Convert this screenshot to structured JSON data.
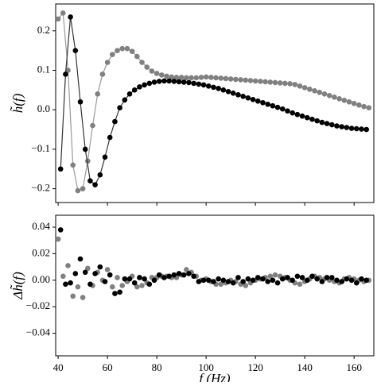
{
  "chart_data": [
    {
      "type": "line",
      "ylabel": "h̃(f)",
      "markers": true,
      "xlim": [
        39,
        168
      ],
      "xticks": [
        40,
        60,
        80,
        100,
        120,
        140,
        160
      ],
      "ylim": [
        -0.235,
        0.268
      ],
      "yticks": [
        {
          "value": -0.2,
          "label": "−0.2"
        },
        {
          "value": -0.1,
          "label": "−0.1"
        },
        {
          "value": 0,
          "label": "0.0"
        },
        0.1,
        0.2
      ],
      "series": [
        {
          "color": "#000000",
          "line_color": "#333333",
          "x": [
            41,
            43,
            45,
            47,
            49,
            51,
            53,
            55,
            57,
            59,
            61,
            63,
            65,
            67,
            69,
            71,
            73,
            75,
            77,
            79,
            81,
            83,
            85,
            87,
            89,
            91,
            93,
            95,
            97,
            99,
            101,
            103,
            105,
            107,
            109,
            111,
            113,
            115,
            117,
            119,
            121,
            123,
            125,
            127,
            129,
            131,
            133,
            135,
            137,
            139,
            141,
            143,
            145,
            147,
            149,
            151,
            153,
            155,
            157,
            159,
            161,
            163,
            165
          ],
          "values": [
            -0.15,
            0.09,
            0.235,
            0.15,
            0.02,
            -0.1,
            -0.18,
            -0.19,
            -0.165,
            -0.12,
            -0.07,
            -0.03,
            0.005,
            0.025,
            0.04,
            0.05,
            0.058,
            0.063,
            0.067,
            0.07,
            0.072,
            0.073,
            0.073,
            0.072,
            0.071,
            0.07,
            0.069,
            0.067,
            0.065,
            0.063,
            0.06,
            0.057,
            0.054,
            0.05,
            0.046,
            0.042,
            0.038,
            0.034,
            0.03,
            0.026,
            0.022,
            0.018,
            0.014,
            0.01,
            0.006,
            0.002,
            -0.003,
            -0.008,
            -0.012,
            -0.016,
            -0.02,
            -0.024,
            -0.028,
            -0.032,
            -0.035,
            -0.038,
            -0.041,
            -0.043,
            -0.045,
            -0.047,
            -0.048,
            -0.049,
            -0.05
          ]
        },
        {
          "color": "#808080",
          "line_color": "#9a9a9a",
          "x": [
            40,
            42,
            44,
            46,
            48,
            50,
            52,
            54,
            56,
            58,
            60,
            62,
            64,
            66,
            68,
            70,
            72,
            74,
            76,
            78,
            80,
            82,
            84,
            86,
            88,
            90,
            92,
            94,
            96,
            98,
            100,
            102,
            104,
            106,
            108,
            110,
            112,
            114,
            116,
            118,
            120,
            122,
            124,
            126,
            128,
            130,
            132,
            134,
            136,
            138,
            140,
            142,
            144,
            146,
            148,
            150,
            152,
            154,
            156,
            158,
            160,
            162,
            164,
            166
          ],
          "values": [
            0.23,
            0.245,
            0.1,
            -0.14,
            -0.205,
            -0.2,
            -0.13,
            -0.04,
            0.04,
            0.09,
            0.12,
            0.14,
            0.15,
            0.155,
            0.155,
            0.148,
            0.135,
            0.12,
            0.108,
            0.098,
            0.092,
            0.088,
            0.085,
            0.083,
            0.082,
            0.082,
            0.081,
            0.081,
            0.081,
            0.082,
            0.083,
            0.082,
            0.081,
            0.08,
            0.079,
            0.078,
            0.077,
            0.076,
            0.075,
            0.074,
            0.073,
            0.072,
            0.071,
            0.07,
            0.069,
            0.068,
            0.067,
            0.066,
            0.064,
            0.06,
            0.056,
            0.052,
            0.048,
            0.044,
            0.04,
            0.036,
            0.032,
            0.028,
            0.024,
            0.02,
            0.016,
            0.012,
            0.008,
            0.005
          ]
        }
      ]
    },
    {
      "type": "scatter",
      "ylabel": "Δh̃(f)",
      "xlabel": "f (Hz)",
      "xlim": [
        39,
        168
      ],
      "xticks": [
        40,
        60,
        80,
        100,
        120,
        140,
        160
      ],
      "ylim": [
        -0.057,
        0.049
      ],
      "yticks": [
        {
          "value": -0.04,
          "label": "−0.04"
        },
        {
          "value": -0.02,
          "label": "−0.02"
        },
        {
          "value": 0,
          "label": "0.00"
        },
        0.02,
        0.04
      ],
      "series": [
        {
          "color": "#000000",
          "x": [
            41,
            43,
            45,
            47,
            49,
            51,
            53,
            55,
            57,
            59,
            61,
            63,
            65,
            67,
            69,
            71,
            73,
            75,
            77,
            79,
            81,
            83,
            85,
            87,
            89,
            91,
            93,
            95,
            97,
            99,
            101,
            103,
            105,
            107,
            109,
            111,
            113,
            115,
            117,
            119,
            121,
            123,
            125,
            127,
            129,
            131,
            133,
            135,
            137,
            139,
            141,
            143,
            145,
            147,
            149,
            151,
            153,
            155,
            157,
            159,
            161,
            163,
            165
          ],
          "values": [
            0.038,
            -0.003,
            -0.002,
            0.005,
            0.016,
            0.006,
            -0.003,
            0.005,
            0.01,
            -0.001,
            0.004,
            -0.01,
            -0.009,
            0.001,
            0.001,
            -0.002,
            0.002,
            0.001,
            -0.003,
            0.0,
            0.004,
            0.002,
            0.003,
            0.004,
            0.005,
            0.004,
            0.005,
            0.003,
            -0.001,
            0.0,
            0.0,
            -0.001,
            0.001,
            0.0,
            -0.001,
            -0.002,
            0.002,
            -0.001,
            0.001,
            0.0,
            0.002,
            0.001,
            -0.001,
            0.0,
            -0.002,
            0.001,
            0.002,
            0.0,
            0.003,
            0.002,
            0.0,
            0.003,
            0.001,
            -0.001,
            0.002,
            0.002,
            0.0,
            -0.001,
            0.001,
            0.0,
            -0.002,
            0.001,
            0.0
          ]
        },
        {
          "color": "#808080",
          "x": [
            40,
            42,
            44,
            46,
            48,
            50,
            52,
            54,
            56,
            58,
            60,
            62,
            64,
            66,
            68,
            70,
            72,
            74,
            76,
            78,
            80,
            82,
            84,
            86,
            88,
            90,
            92,
            94,
            96,
            98,
            100,
            102,
            104,
            106,
            108,
            110,
            112,
            114,
            116,
            118,
            120,
            122,
            124,
            126,
            128,
            130,
            132,
            134,
            136,
            138,
            140,
            142,
            144,
            146,
            148,
            150,
            152,
            154,
            156,
            158,
            160,
            162,
            164,
            166
          ],
          "values": [
            0.031,
            0.003,
            0.011,
            -0.012,
            -0.005,
            -0.013,
            0.009,
            -0.004,
            0.006,
            0.0,
            0.008,
            -0.005,
            0.002,
            -0.004,
            -0.001,
            0.003,
            -0.005,
            -0.004,
            -0.002,
            0.002,
            0.002,
            0.003,
            0.003,
            0.002,
            0.002,
            0.004,
            0.008,
            0.006,
            0.003,
            0.0,
            0.001,
            -0.001,
            -0.003,
            -0.003,
            -0.002,
            0.0,
            -0.001,
            -0.003,
            -0.004,
            -0.002,
            0.0,
            0.001,
            0.002,
            0.003,
            0.004,
            0.003,
            0.002,
            0.0,
            -0.002,
            -0.003,
            -0.001,
            0.001,
            0.003,
            0.002,
            0.001,
            0.0,
            -0.001,
            -0.002,
            0.001,
            0.002,
            0.001,
            0.0,
            -0.001,
            0.0
          ]
        }
      ]
    }
  ]
}
